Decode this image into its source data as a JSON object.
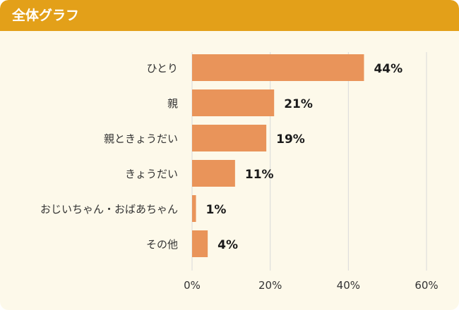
{
  "header": {
    "title": "全体グラフ"
  },
  "chart_data": {
    "type": "bar",
    "orientation": "horizontal",
    "title": "",
    "xlabel": "",
    "ylabel": "",
    "categories": [
      "ひとり",
      "親",
      "親ときょうだい",
      "きょうだい",
      "おじいちゃん・おばあちゃん",
      "その他"
    ],
    "values": [
      44,
      21,
      19,
      11,
      1,
      4
    ],
    "value_suffix": "%",
    "xlim": [
      0,
      60
    ],
    "xticks": [
      0,
      20,
      40,
      60
    ],
    "xtick_labels": [
      "0%",
      "20%",
      "40%",
      "60%"
    ],
    "grid": "vertical",
    "legend": "none",
    "colors": {
      "bar": "#e9945a",
      "grid": "#d9d9d9",
      "header": "#e3a019",
      "panel": "#fdf9ea"
    }
  }
}
